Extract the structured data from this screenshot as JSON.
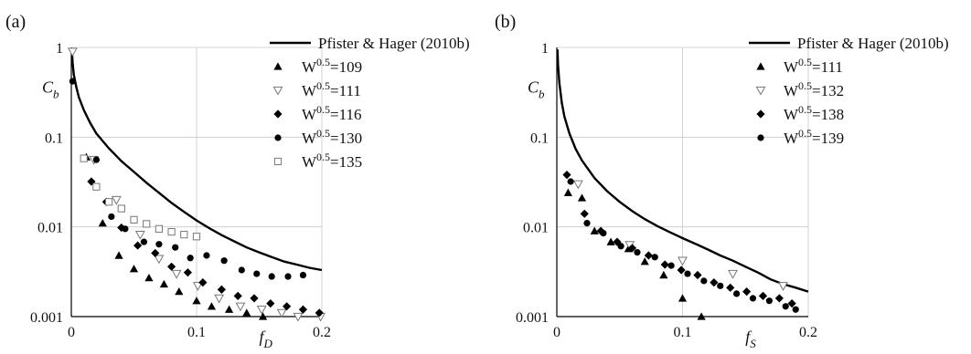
{
  "chart_data": [
    {
      "panel_label": "(a)",
      "type": "scatter",
      "xlabel_main": "f",
      "xlabel_sub": "D",
      "ylabel_main": "C",
      "ylabel_sub": "b",
      "xlim": [
        0,
        0.2
      ],
      "ylim": [
        0.001,
        1
      ],
      "yscale": "log",
      "grid": true,
      "legend_position": "right",
      "x_ticks": [
        {
          "value": 0,
          "label": "0"
        },
        {
          "value": 0.1,
          "label": "0.1"
        },
        {
          "value": 0.2,
          "label": "0.2"
        }
      ],
      "y_ticks": [
        {
          "value": 1,
          "label": "1"
        },
        {
          "value": 0.1,
          "label": "0.1"
        },
        {
          "value": 0.01,
          "label": "0.01"
        },
        {
          "value": 0.001,
          "label": "0.001"
        }
      ],
      "curve": {
        "name": "Pfister & Hager (2010b)",
        "points": [
          [
            0.0005,
            0.93
          ],
          [
            0.001,
            0.68
          ],
          [
            0.002,
            0.5
          ],
          [
            0.004,
            0.36
          ],
          [
            0.006,
            0.28
          ],
          [
            0.01,
            0.2
          ],
          [
            0.015,
            0.145
          ],
          [
            0.02,
            0.11
          ],
          [
            0.03,
            0.075
          ],
          [
            0.04,
            0.054
          ],
          [
            0.05,
            0.041
          ],
          [
            0.06,
            0.031
          ],
          [
            0.07,
            0.024
          ],
          [
            0.08,
            0.0185
          ],
          [
            0.09,
            0.0147
          ],
          [
            0.1,
            0.0118
          ],
          [
            0.11,
            0.0097
          ],
          [
            0.12,
            0.0081
          ],
          [
            0.13,
            0.0069
          ],
          [
            0.14,
            0.0059
          ],
          [
            0.15,
            0.0052
          ],
          [
            0.16,
            0.0046
          ],
          [
            0.17,
            0.0041
          ],
          [
            0.18,
            0.0038
          ],
          [
            0.19,
            0.0035
          ],
          [
            0.2,
            0.0033
          ]
        ]
      },
      "series": [
        {
          "legend_base": "W",
          "legend_sup": "0.5",
          "legend_value": "=109",
          "marker": "triangle-up-filled",
          "points": [
            [
              0.012,
              0.06
            ],
            [
              0.025,
              0.011
            ],
            [
              0.038,
              0.0048
            ],
            [
              0.05,
              0.0034
            ],
            [
              0.062,
              0.0027
            ],
            [
              0.074,
              0.0023
            ],
            [
              0.086,
              0.0019
            ],
            [
              0.1,
              0.0015
            ],
            [
              0.112,
              0.0013
            ],
            [
              0.126,
              0.0012
            ],
            [
              0.14,
              0.0011
            ],
            [
              0.153,
              0.001
            ]
          ]
        },
        {
          "legend_base": "W",
          "legend_sup": "0.5",
          "legend_value": "=111",
          "marker": "triangle-down-open",
          "points": [
            [
              0.001,
              0.9
            ],
            [
              0.018,
              0.056
            ],
            [
              0.036,
              0.02
            ],
            [
              0.055,
              0.0082
            ],
            [
              0.07,
              0.0044
            ],
            [
              0.084,
              0.003
            ],
            [
              0.101,
              0.0022
            ],
            [
              0.118,
              0.0016
            ],
            [
              0.135,
              0.0013
            ],
            [
              0.152,
              0.0012
            ],
            [
              0.168,
              0.0011
            ],
            [
              0.181,
              0.001
            ],
            [
              0.199,
              0.001
            ]
          ]
        },
        {
          "legend_base": "W",
          "legend_sup": "0.5",
          "legend_value": "=116",
          "marker": "diamond-filled",
          "points": [
            [
              0.016,
              0.032
            ],
            [
              0.028,
              0.019
            ],
            [
              0.04,
              0.0098
            ],
            [
              0.053,
              0.0062
            ],
            [
              0.067,
              0.0051
            ],
            [
              0.08,
              0.0036
            ],
            [
              0.093,
              0.0031
            ],
            [
              0.105,
              0.0024
            ],
            [
              0.12,
              0.002
            ],
            [
              0.133,
              0.0017
            ],
            [
              0.146,
              0.0016
            ],
            [
              0.159,
              0.0014
            ],
            [
              0.172,
              0.0013
            ],
            [
              0.185,
              0.0012
            ],
            [
              0.198,
              0.0011
            ]
          ]
        },
        {
          "legend_base": "W",
          "legend_sup": "0.5",
          "legend_value": "=130",
          "marker": "circle-filled",
          "points": [
            [
              0.001,
              0.42
            ],
            [
              0.02,
              0.056
            ],
            [
              0.032,
              0.013
            ],
            [
              0.043,
              0.0095
            ],
            [
              0.058,
              0.0068
            ],
            [
              0.07,
              0.0064
            ],
            [
              0.083,
              0.0059
            ],
            [
              0.095,
              0.0045
            ],
            [
              0.108,
              0.0048
            ],
            [
              0.122,
              0.0042
            ],
            [
              0.136,
              0.0033
            ],
            [
              0.148,
              0.003
            ],
            [
              0.16,
              0.0028
            ],
            [
              0.173,
              0.0028
            ],
            [
              0.185,
              0.0029
            ]
          ]
        },
        {
          "legend_base": "W",
          "legend_sup": "0.5",
          "legend_value": "=135",
          "marker": "square-open",
          "points": [
            [
              0.01,
              0.058
            ],
            [
              0.02,
              0.028
            ],
            [
              0.03,
              0.019
            ],
            [
              0.04,
              0.016
            ],
            [
              0.05,
              0.012
            ],
            [
              0.06,
              0.0108
            ],
            [
              0.07,
              0.0095
            ],
            [
              0.08,
              0.0088
            ],
            [
              0.09,
              0.0082
            ],
            [
              0.1,
              0.0078
            ]
          ]
        }
      ]
    },
    {
      "panel_label": "(b)",
      "type": "scatter",
      "xlabel_main": "f",
      "xlabel_sub": "S",
      "ylabel_main": "C",
      "ylabel_sub": "b",
      "xlim": [
        0,
        0.2
      ],
      "ylim": [
        0.001,
        1
      ],
      "yscale": "log",
      "grid": true,
      "legend_position": "right",
      "x_ticks": [
        {
          "value": 0,
          "label": "0"
        },
        {
          "value": 0.1,
          "label": "0.1"
        },
        {
          "value": 0.2,
          "label": "0.2"
        }
      ],
      "y_ticks": [
        {
          "value": 1,
          "label": "1"
        },
        {
          "value": 0.1,
          "label": "0.1"
        },
        {
          "value": 0.01,
          "label": "0.01"
        },
        {
          "value": 0.001,
          "label": "0.001"
        }
      ],
      "curve": {
        "name": "Pfister & Hager (2010b)",
        "points": [
          [
            0.0005,
            0.95
          ],
          [
            0.001,
            0.62
          ],
          [
            0.002,
            0.4
          ],
          [
            0.004,
            0.24
          ],
          [
            0.006,
            0.17
          ],
          [
            0.01,
            0.11
          ],
          [
            0.015,
            0.074
          ],
          [
            0.02,
            0.055
          ],
          [
            0.03,
            0.035
          ],
          [
            0.04,
            0.025
          ],
          [
            0.05,
            0.019
          ],
          [
            0.06,
            0.015
          ],
          [
            0.07,
            0.0122
          ],
          [
            0.08,
            0.0102
          ],
          [
            0.09,
            0.0087
          ],
          [
            0.1,
            0.0075
          ],
          [
            0.11,
            0.0065
          ],
          [
            0.12,
            0.0056
          ],
          [
            0.13,
            0.0048
          ],
          [
            0.14,
            0.0042
          ],
          [
            0.15,
            0.0036
          ],
          [
            0.16,
            0.0031
          ],
          [
            0.17,
            0.0026
          ],
          [
            0.18,
            0.0023
          ],
          [
            0.19,
            0.0021
          ],
          [
            0.2,
            0.0019
          ]
        ]
      },
      "series": [
        {
          "legend_base": "W",
          "legend_sup": "0.5",
          "legend_value": "=111",
          "marker": "triangle-up-filled",
          "points": [
            [
              0.009,
              0.024
            ],
            [
              0.02,
              0.021
            ],
            [
              0.03,
              0.009
            ],
            [
              0.043,
              0.0068
            ],
            [
              0.057,
              0.0057
            ],
            [
              0.07,
              0.0041
            ],
            [
              0.085,
              0.0029
            ],
            [
              0.1,
              0.0016
            ],
            [
              0.115,
              0.001
            ]
          ]
        },
        {
          "legend_base": "W",
          "legend_sup": "0.5",
          "legend_value": "=132",
          "marker": "triangle-down-open",
          "points": [
            [
              0.017,
              0.03
            ],
            [
              0.058,
              0.0063
            ],
            [
              0.1,
              0.0042
            ],
            [
              0.14,
              0.003
            ],
            [
              0.18,
              0.0022
            ]
          ]
        },
        {
          "legend_base": "W",
          "legend_sup": "0.5",
          "legend_value": "=138",
          "marker": "diamond-filled",
          "points": [
            [
              0.008,
              0.038
            ],
            [
              0.022,
              0.014
            ],
            [
              0.035,
              0.009
            ],
            [
              0.048,
              0.0068
            ],
            [
              0.06,
              0.0058
            ],
            [
              0.073,
              0.0048
            ],
            [
              0.086,
              0.0038
            ],
            [
              0.099,
              0.0033
            ],
            [
              0.112,
              0.0029
            ],
            [
              0.125,
              0.0024
            ],
            [
              0.138,
              0.0021
            ],
            [
              0.151,
              0.0019
            ],
            [
              0.164,
              0.0017
            ],
            [
              0.177,
              0.0016
            ],
            [
              0.187,
              0.0014
            ]
          ]
        },
        {
          "legend_base": "W",
          "legend_sup": "0.5",
          "legend_value": "=139",
          "marker": "circle-filled",
          "points": [
            [
              0.011,
              0.032
            ],
            [
              0.024,
              0.011
            ],
            [
              0.037,
              0.0085
            ],
            [
              0.051,
              0.0061
            ],
            [
              0.064,
              0.0052
            ],
            [
              0.078,
              0.0046
            ],
            [
              0.091,
              0.0037
            ],
            [
              0.104,
              0.003
            ],
            [
              0.117,
              0.0025
            ],
            [
              0.13,
              0.0022
            ],
            [
              0.143,
              0.0018
            ],
            [
              0.156,
              0.0016
            ],
            [
              0.169,
              0.0015
            ],
            [
              0.182,
              0.0013
            ],
            [
              0.19,
              0.0012
            ]
          ]
        }
      ]
    }
  ]
}
